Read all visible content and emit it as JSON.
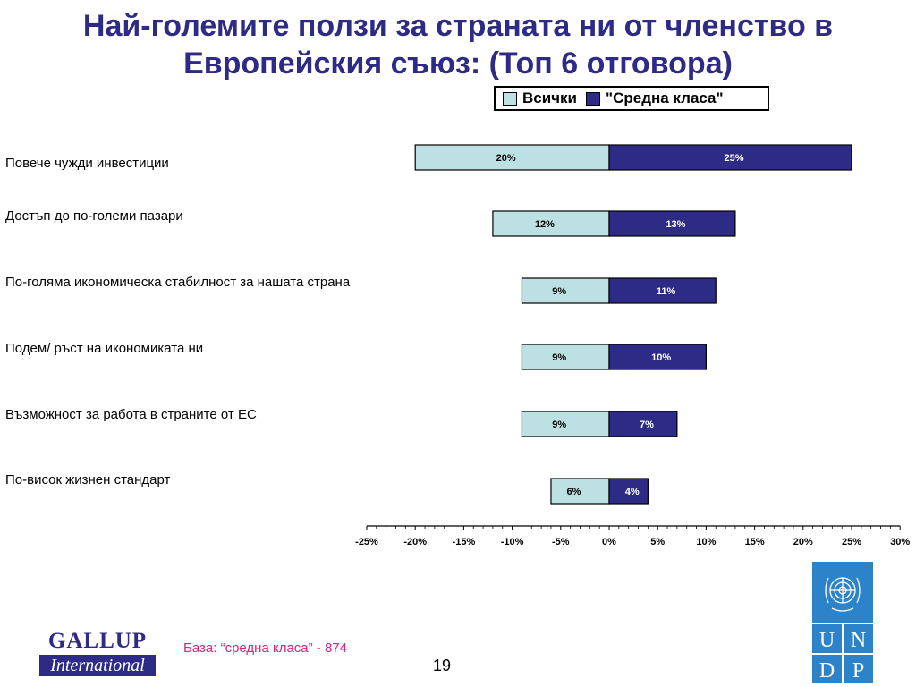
{
  "title": "Най-големите ползи за страната ни от членство в Европейския съюз: (Топ 6 отговора)",
  "legend": [
    {
      "label": "Всички",
      "color": "#bde0e3"
    },
    {
      "label": "\"Средна класа\"",
      "color": "#2e2b86"
    }
  ],
  "chart_data": {
    "type": "bar",
    "orientation": "horizontal",
    "categories": [
      "Повече чужди инвестиции",
      "Достъп до по-големи пазари",
      "По-голяма икономическа стабилност за нашата страна",
      "Подем/ ръст на икономиката ни",
      "Възможност за работа в страните от ЕС",
      "По-висок жизнен стандарт"
    ],
    "series": [
      {
        "name": "Всички",
        "values": [
          20,
          12,
          9,
          9,
          9,
          6
        ],
        "labels": [
          "20%",
          "12%",
          "9%",
          "9%",
          "9%",
          "6%"
        ],
        "direction": "left",
        "color": "#bde0e3"
      },
      {
        "name": "\"Средна класа\"",
        "values": [
          25,
          13,
          11,
          10,
          7,
          4
        ],
        "labels": [
          "25%",
          "13%",
          "11%",
          "10%",
          "7%",
          "4%"
        ],
        "direction": "right",
        "color": "#2e2b86"
      }
    ],
    "xlim": [
      -25,
      30
    ],
    "xticks": [
      "-25%",
      "-20%",
      "-15%",
      "-10%",
      "-5%",
      "0%",
      "5%",
      "10%",
      "15%",
      "20%",
      "25%",
      "30%"
    ],
    "xlabel": "",
    "ylabel": "",
    "grid": false,
    "legend_position": "top-right"
  },
  "footer": {
    "logo_line1": "GALLUP",
    "logo_line2": "International",
    "base_note": "База: “средна класа” - 874",
    "page_number": "19"
  },
  "undp_letters": [
    "U",
    "N",
    "D",
    "P"
  ],
  "colors": {
    "title": "#2e2b86",
    "note": "#e0207a",
    "undp": "#2d83c9"
  }
}
